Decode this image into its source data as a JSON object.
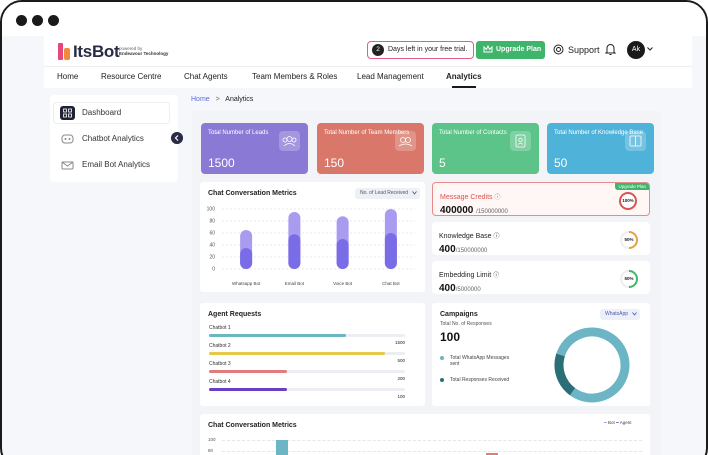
{
  "header": {
    "brand": "ItsBot",
    "powered_by": "powered by",
    "company": "Endeavour Technology",
    "trial_days": "2",
    "trial_text": "Days left in your free trial.",
    "upgrade_label": "Upgrade Plan",
    "support_label": "Support",
    "avatar_initials": "Ak"
  },
  "nav": [
    "Home",
    "Resource Centre",
    "Chat Agents",
    "Team Members & Roles",
    "Lead Management",
    "Analytics"
  ],
  "nav_active": "Analytics",
  "sidebar": {
    "items": [
      {
        "label": "Dashboard",
        "icon": "dashboard-icon"
      },
      {
        "label": "Chatbot Analytics",
        "icon": "chatbot-icon"
      },
      {
        "label": "Email Bot Analytics",
        "icon": "email-bot-icon"
      }
    ]
  },
  "breadcrumb": {
    "home": "Home",
    "sep": ">",
    "current": "Analytics"
  },
  "stats": [
    {
      "label": "Total Number of Leads",
      "value": "1500",
      "color": "#8b79d6"
    },
    {
      "label": "Total Number of Team Members",
      "value": "150",
      "color": "#d9786a"
    },
    {
      "label": "Total Number of Contacts",
      "value": "5",
      "color": "#5cc488"
    },
    {
      "label": "Total Number of Knowledge Base",
      "value": "50",
      "color": "#4fb3d9"
    }
  ],
  "conv_metrics": {
    "title": "Chat Conversation Metrics",
    "dropdown": "No. of Lead Received",
    "chart_data": {
      "type": "bar",
      "categories": [
        "Whatsapp Bot",
        "Email Bot",
        "Voice Bot",
        "Chat Bot"
      ],
      "series": [
        {
          "values": [
            35,
            58,
            50,
            60
          ]
        },
        {
          "values": [
            65,
            95,
            88,
            100
          ]
        }
      ],
      "ylim": [
        0,
        100
      ],
      "yticks": [
        100,
        80,
        60,
        40,
        20,
        0
      ]
    }
  },
  "metrics": [
    {
      "label": "Message Credits",
      "value": "400000",
      "total": "/150000000",
      "percent": "100%",
      "badge": "Upgrade Plan",
      "alert": true
    },
    {
      "label": "Knowledge Base",
      "value": "400",
      "total": "/150000000",
      "percent": "50%"
    },
    {
      "label": "Embedding Limit",
      "value": "400",
      "total": "/5000000",
      "percent": "50%"
    }
  ],
  "agent_requests": {
    "title": "Agent Requests",
    "rows": [
      {
        "label": "Chatbot 1",
        "value": "1500",
        "fraction": 0.7,
        "color": "#6bb5c4"
      },
      {
        "label": "Chatbot 2",
        "value": "500",
        "fraction": 0.9,
        "color": "#e6c84a"
      },
      {
        "label": "Chatbot 3",
        "value": "200",
        "fraction": 0.4,
        "color": "#e27b7b"
      },
      {
        "label": "Chatbot 4",
        "value": "100",
        "fraction": 0.4,
        "color": "#6a3fc2"
      }
    ]
  },
  "campaigns": {
    "title": "Campaigns",
    "dropdown": "WhatsApp",
    "sub_label": "Total No. of Responses",
    "value": "100",
    "legend": [
      {
        "label": "Total WhatsApp Messages sent",
        "color": "#6bb5c4"
      },
      {
        "label": "Total Responses Received",
        "color": "#2a6e78"
      }
    ],
    "chart_data": {
      "type": "pie",
      "categories": [
        "Total WhatsApp Messages sent",
        "Total Responses Received"
      ],
      "values": [
        80,
        20
      ]
    }
  },
  "bottom_chart": {
    "title": "Chat Conversation Metrics",
    "legend": [
      "Bot",
      "Agent"
    ],
    "yticks": [
      "100",
      "80"
    ]
  }
}
